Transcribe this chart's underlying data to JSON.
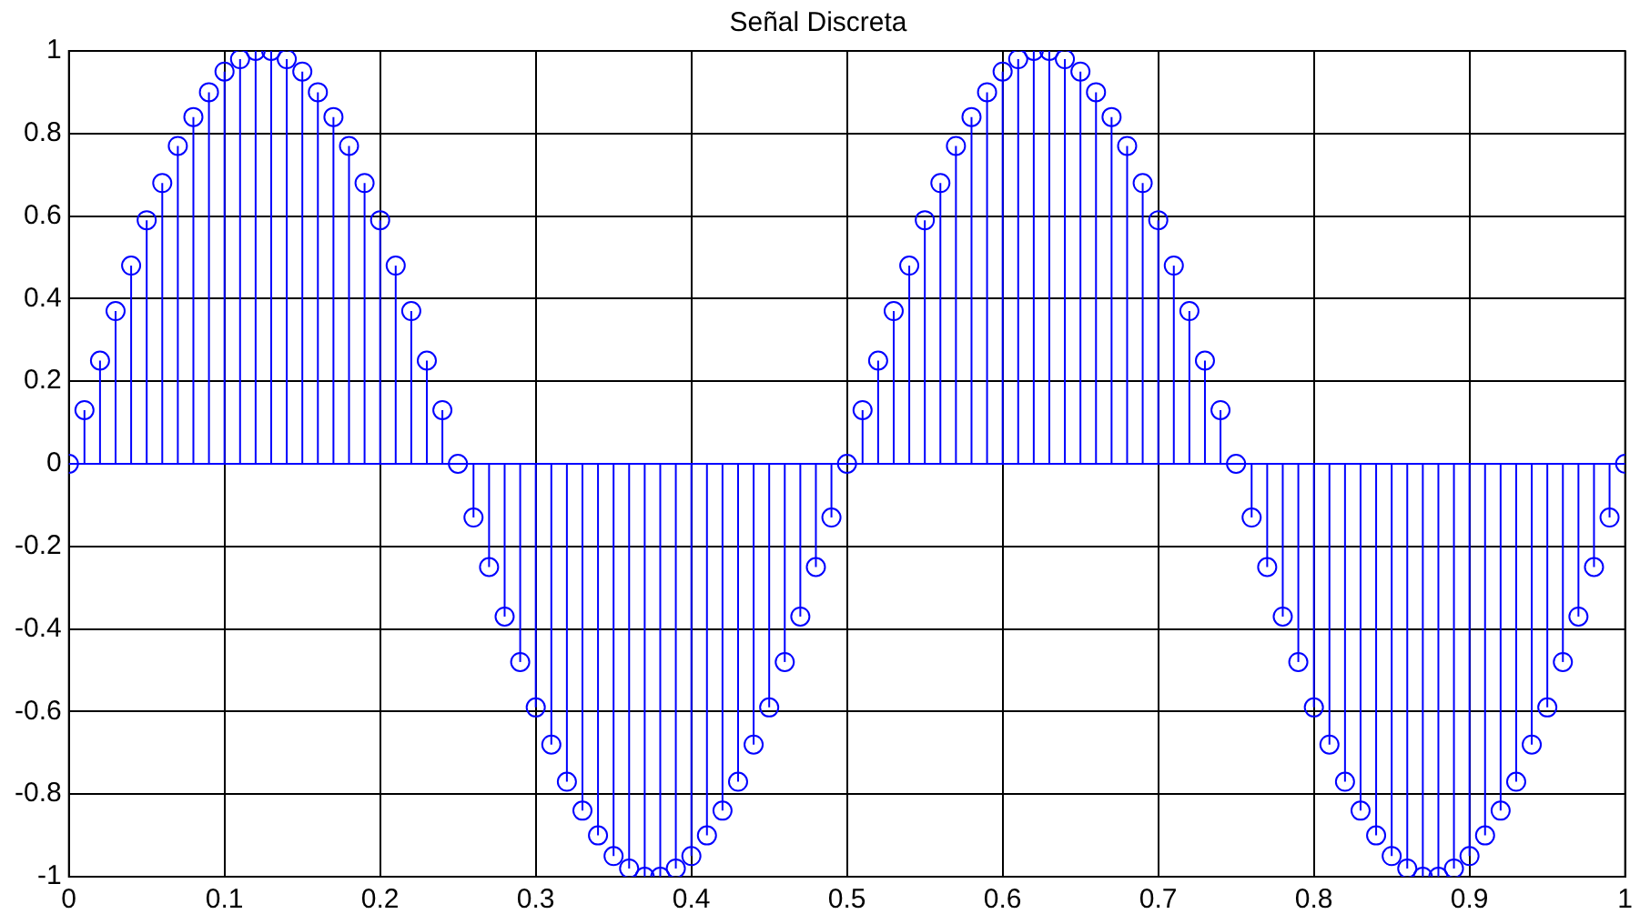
{
  "chart_data": {
    "type": "lollipop",
    "title": "Señal Discreta",
    "color": "#0000ff",
    "marker": "circle",
    "line_style": "solid",
    "grid": true,
    "x": [
      0,
      0.01,
      0.02,
      0.03,
      0.04,
      0.05,
      0.06,
      0.07,
      0.08,
      0.09,
      0.1,
      0.11,
      0.12,
      0.13,
      0.14,
      0.15,
      0.16,
      0.17,
      0.18,
      0.19,
      0.2,
      0.21,
      0.22,
      0.23,
      0.24,
      0.25,
      0.26,
      0.27,
      0.28,
      0.29,
      0.3,
      0.31,
      0.32,
      0.33,
      0.34,
      0.35,
      0.36,
      0.37,
      0.38,
      0.39,
      0.4,
      0.41,
      0.42,
      0.43,
      0.44,
      0.45,
      0.46,
      0.47,
      0.48,
      0.49,
      0.5,
      0.51,
      0.52,
      0.53,
      0.54,
      0.55,
      0.56,
      0.57,
      0.58,
      0.59,
      0.6,
      0.61,
      0.62,
      0.63,
      0.64,
      0.65,
      0.66,
      0.67,
      0.68,
      0.69,
      0.7,
      0.71,
      0.72,
      0.73,
      0.74,
      0.75,
      0.76,
      0.77,
      0.78,
      0.79,
      0.8,
      0.81,
      0.82,
      0.83,
      0.84,
      0.85,
      0.86,
      0.87,
      0.88,
      0.89,
      0.9,
      0.91,
      0.92,
      0.93,
      0.94,
      0.95,
      0.96,
      0.97,
      0.98,
      0.99,
      1
    ],
    "values": [
      0,
      0.13,
      0.25,
      0.37,
      0.48,
      0.59,
      0.68,
      0.77,
      0.84,
      0.9,
      0.95,
      0.98,
      1,
      1,
      0.98,
      0.95,
      0.9,
      0.84,
      0.77,
      0.68,
      0.59,
      0.48,
      0.37,
      0.25,
      0.13,
      0,
      -0.13,
      -0.25,
      -0.37,
      -0.48,
      -0.59,
      -0.68,
      -0.77,
      -0.84,
      -0.9,
      -0.95,
      -0.98,
      -1,
      -1,
      -0.98,
      -0.95,
      -0.9,
      -0.84,
      -0.77,
      -0.68,
      -0.59,
      -0.48,
      -0.37,
      -0.25,
      -0.13,
      0,
      0.13,
      0.25,
      0.37,
      0.48,
      0.59,
      0.68,
      0.77,
      0.84,
      0.9,
      0.95,
      0.98,
      1,
      1,
      0.98,
      0.95,
      0.9,
      0.84,
      0.77,
      0.68,
      0.59,
      0.48,
      0.37,
      0.25,
      0.13,
      0,
      -0.13,
      -0.25,
      -0.37,
      -0.48,
      -0.59,
      -0.68,
      -0.77,
      -0.84,
      -0.9,
      -0.95,
      -0.98,
      -1,
      -1,
      -0.98,
      -0.95,
      -0.9,
      -0.84,
      -0.77,
      -0.68,
      -0.59,
      -0.48,
      -0.37,
      -0.25,
      -0.13,
      0
    ],
    "xlim": [
      0,
      1
    ],
    "xticks": [
      0,
      0.1,
      0.2,
      0.3,
      0.4,
      0.5,
      0.6,
      0.7,
      0.8,
      0.9,
      1
    ],
    "ylim": [
      -1,
      1
    ],
    "yticks": [
      -1,
      -0.8,
      -0.6,
      -0.4,
      -0.2,
      0,
      0.2,
      0.4,
      0.6,
      0.8,
      1
    ],
    "ref_lines": [
      {
        "axis": "y",
        "value": 0,
        "color": "#0000ff"
      }
    ]
  }
}
